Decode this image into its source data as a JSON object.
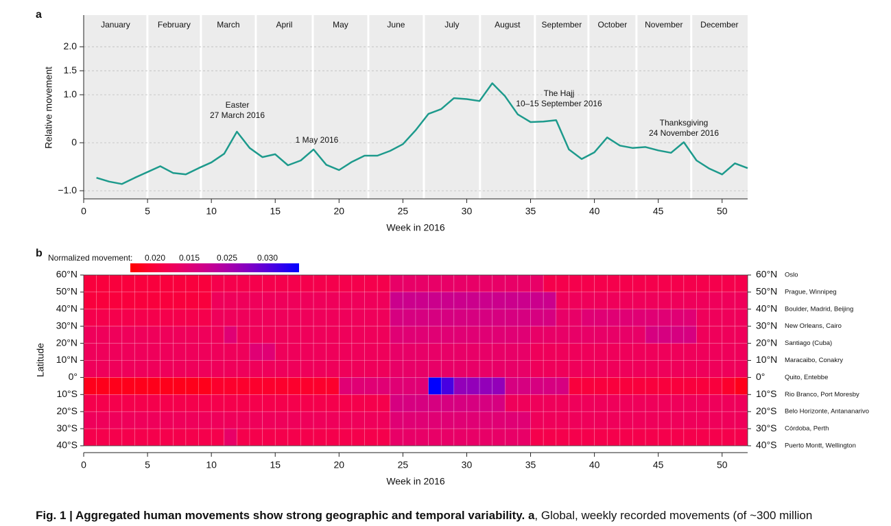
{
  "figure": {
    "panel_a_label": "a",
    "panel_b_label": "b",
    "caption": {
      "bold": "Fig. 1 | Aggregated human movements show strong geographic and temporal variability.",
      "bold_panel": "a",
      "text": ", Global, weekly recorded movements (of ~300 million"
    }
  },
  "chart_data": [
    {
      "type": "line",
      "xlabel": "Week in 2016",
      "ylabel": "Relative movement",
      "x": [
        1,
        2,
        3,
        4,
        5,
        6,
        7,
        8,
        9,
        10,
        11,
        12,
        13,
        14,
        15,
        16,
        17,
        18,
        19,
        20,
        21,
        22,
        23,
        24,
        25,
        26,
        27,
        28,
        29,
        30,
        31,
        32,
        33,
        34,
        35,
        36,
        37,
        38,
        39,
        40,
        41,
        42,
        43,
        44,
        45,
        46,
        47,
        48,
        49,
        50,
        51,
        52
      ],
      "series": [
        {
          "color": "#1d9a8c",
          "values": [
            -0.73,
            -0.81,
            -0.86,
            -0.73,
            -0.61,
            -0.49,
            -0.63,
            -0.66,
            -0.53,
            -0.41,
            -0.23,
            0.23,
            -0.11,
            -0.3,
            -0.24,
            -0.47,
            -0.37,
            -0.14,
            -0.46,
            -0.57,
            -0.4,
            -0.27,
            -0.27,
            -0.17,
            -0.03,
            0.26,
            0.6,
            0.7,
            0.93,
            0.91,
            0.87,
            1.24,
            0.97,
            0.59,
            0.43,
            0.44,
            0.47,
            -0.14,
            -0.34,
            -0.2,
            0.11,
            -0.06,
            -0.11,
            -0.09,
            -0.16,
            -0.21,
            0.01,
            -0.37,
            -0.54,
            -0.66,
            -0.43,
            -0.53
          ]
        }
      ],
      "xlim": [
        0,
        52
      ],
      "xticks": [
        0,
        5,
        10,
        15,
        20,
        25,
        30,
        35,
        40,
        45,
        50
      ],
      "ylim": [
        -1.17,
        2.66
      ],
      "yticks": [
        {
          "value": 2.0,
          "label": "2.0"
        },
        1.5,
        {
          "value": 1.0,
          "label": "1.0"
        },
        0,
        {
          "value": -1.0,
          "label": "−1.0"
        }
      ],
      "months": [
        "January",
        "February",
        "March",
        "April",
        "May",
        "June",
        "July",
        "August",
        "September",
        "October",
        "November",
        "December"
      ],
      "month_edges": [
        0,
        4.99,
        9.18,
        13.48,
        17.94,
        22.29,
        26.64,
        31.04,
        35.34,
        39.53,
        43.29,
        47.58,
        52
      ],
      "annotations": [
        {
          "lines": [
            "Easter",
            "27 March 2016"
          ]
        },
        {
          "lines": [
            "1 May 2016"
          ]
        },
        {
          "lines": [
            "The Hajj",
            "10–15 September 2016"
          ]
        },
        {
          "lines": [
            "Thanksgiving",
            "24 November 2016"
          ]
        }
      ]
    },
    {
      "type": "heatmap",
      "xlabel": "Week in 2016",
      "ylabel": "Latitude",
      "colorbar_title": "Normalized movement:",
      "colorbar_labels": [
        "0.020",
        "0.015",
        "0.025",
        "0.030"
      ],
      "clim": [
        0.015,
        0.035
      ],
      "xlim": [
        0,
        52
      ],
      "xticks": [
        0,
        5,
        10,
        15,
        20,
        25,
        30,
        35,
        40,
        45,
        50
      ],
      "x": [
        1,
        2,
        3,
        4,
        5,
        6,
        7,
        8,
        9,
        10,
        11,
        12,
        13,
        14,
        15,
        16,
        17,
        18,
        19,
        20,
        21,
        22,
        23,
        24,
        25,
        26,
        27,
        28,
        29,
        30,
        31,
        32,
        33,
        34,
        35,
        36,
        37,
        38,
        39,
        40,
        41,
        42,
        43,
        44,
        45,
        46,
        47,
        48,
        49,
        50,
        51,
        52
      ],
      "y_labels": [
        "60°N",
        "50°N",
        "40°N",
        "30°N",
        "20°N",
        "10°N",
        "0°",
        "10°S",
        "20°S",
        "30°S",
        "40°S"
      ],
      "cities": [
        "Oslo",
        "Prague, Winnipeg",
        "Boulder, Madrid, Beijing",
        "New Orleans, Cairo",
        "Santiago (Cuba)",
        "Maracaibo, Conakry",
        "Quito, Entebbe",
        "Rio Branco, Port Moresby",
        "Belo Horizonte, Antananarivo",
        "Córdoba, Perth",
        "Puerto Montt, Wellington"
      ],
      "z": [
        [
          0.018,
          0.018,
          0.018,
          0.018,
          0.018,
          0.018,
          0.018,
          0.018,
          0.018,
          0.018,
          0.019,
          0.019,
          0.019,
          0.019,
          0.019,
          0.019,
          0.019,
          0.019,
          0.019,
          0.019,
          0.019,
          0.019,
          0.019,
          0.019,
          0.021,
          0.021,
          0.021,
          0.021,
          0.021,
          0.021,
          0.021,
          0.021,
          0.021,
          0.021,
          0.021,
          0.021,
          0.019,
          0.019,
          0.019,
          0.019,
          0.019,
          0.019,
          0.019,
          0.019,
          0.019,
          0.019,
          0.019,
          0.019,
          0.019,
          0.019,
          0.019,
          0.019
        ],
        [
          0.018,
          0.018,
          0.018,
          0.018,
          0.018,
          0.018,
          0.018,
          0.018,
          0.018,
          0.018,
          0.02,
          0.02,
          0.02,
          0.02,
          0.02,
          0.02,
          0.02,
          0.02,
          0.02,
          0.02,
          0.02,
          0.02,
          0.02,
          0.02,
          0.024,
          0.024,
          0.024,
          0.024,
          0.024,
          0.024,
          0.024,
          0.024,
          0.024,
          0.024,
          0.024,
          0.024,
          0.024,
          0.02,
          0.02,
          0.02,
          0.02,
          0.02,
          0.02,
          0.02,
          0.02,
          0.02,
          0.02,
          0.02,
          0.02,
          0.02,
          0.02,
          0.02
        ],
        [
          0.019,
          0.019,
          0.019,
          0.019,
          0.019,
          0.019,
          0.019,
          0.019,
          0.019,
          0.019,
          0.02,
          0.02,
          0.02,
          0.02,
          0.02,
          0.02,
          0.02,
          0.02,
          0.02,
          0.02,
          0.02,
          0.02,
          0.02,
          0.02,
          0.023,
          0.023,
          0.023,
          0.023,
          0.023,
          0.023,
          0.023,
          0.023,
          0.023,
          0.023,
          0.023,
          0.023,
          0.023,
          0.021,
          0.021,
          0.022,
          0.022,
          0.022,
          0.022,
          0.022,
          0.022,
          0.022,
          0.022,
          0.022,
          0.02,
          0.02,
          0.02,
          0.02
        ],
        [
          0.02,
          0.02,
          0.02,
          0.02,
          0.02,
          0.02,
          0.02,
          0.02,
          0.02,
          0.02,
          0.02,
          0.022,
          0.02,
          0.02,
          0.02,
          0.02,
          0.02,
          0.02,
          0.02,
          0.02,
          0.02,
          0.02,
          0.02,
          0.02,
          0.022,
          0.022,
          0.022,
          0.022,
          0.022,
          0.022,
          0.022,
          0.022,
          0.022,
          0.022,
          0.022,
          0.021,
          0.021,
          0.021,
          0.021,
          0.021,
          0.021,
          0.021,
          0.021,
          0.021,
          0.023,
          0.023,
          0.023,
          0.023,
          0.02,
          0.02,
          0.02,
          0.02
        ],
        [
          0.02,
          0.02,
          0.02,
          0.02,
          0.02,
          0.02,
          0.02,
          0.02,
          0.02,
          0.02,
          0.02,
          0.02,
          0.02,
          0.022,
          0.022,
          0.02,
          0.02,
          0.02,
          0.02,
          0.02,
          0.02,
          0.02,
          0.02,
          0.02,
          0.021,
          0.021,
          0.021,
          0.021,
          0.021,
          0.021,
          0.021,
          0.021,
          0.021,
          0.021,
          0.021,
          0.02,
          0.02,
          0.02,
          0.02,
          0.02,
          0.02,
          0.02,
          0.02,
          0.02,
          0.02,
          0.02,
          0.02,
          0.02,
          0.02,
          0.02,
          0.02,
          0.02
        ],
        [
          0.02,
          0.02,
          0.02,
          0.02,
          0.02,
          0.02,
          0.02,
          0.02,
          0.02,
          0.02,
          0.02,
          0.02,
          0.02,
          0.02,
          0.02,
          0.02,
          0.02,
          0.02,
          0.02,
          0.02,
          0.02,
          0.02,
          0.02,
          0.02,
          0.021,
          0.021,
          0.021,
          0.021,
          0.021,
          0.021,
          0.021,
          0.021,
          0.021,
          0.021,
          0.021,
          0.02,
          0.02,
          0.02,
          0.02,
          0.02,
          0.02,
          0.02,
          0.02,
          0.02,
          0.02,
          0.02,
          0.02,
          0.02,
          0.02,
          0.02,
          0.02,
          0.02
        ],
        [
          0.016,
          0.016,
          0.016,
          0.016,
          0.016,
          0.016,
          0.016,
          0.016,
          0.016,
          0.016,
          0.017,
          0.017,
          0.017,
          0.017,
          0.017,
          0.017,
          0.017,
          0.017,
          0.017,
          0.017,
          0.022,
          0.022,
          0.022,
          0.022,
          0.022,
          0.022,
          0.022,
          0.035,
          0.032,
          0.028,
          0.028,
          0.028,
          0.028,
          0.023,
          0.023,
          0.023,
          0.023,
          0.023,
          0.018,
          0.018,
          0.018,
          0.018,
          0.018,
          0.018,
          0.018,
          0.018,
          0.018,
          0.018,
          0.018,
          0.018,
          0.017,
          0.016
        ],
        [
          0.019,
          0.019,
          0.019,
          0.019,
          0.019,
          0.019,
          0.019,
          0.019,
          0.019,
          0.019,
          0.019,
          0.019,
          0.019,
          0.019,
          0.019,
          0.019,
          0.019,
          0.019,
          0.019,
          0.019,
          0.019,
          0.019,
          0.019,
          0.019,
          0.023,
          0.023,
          0.023,
          0.023,
          0.023,
          0.023,
          0.023,
          0.023,
          0.023,
          0.02,
          0.02,
          0.02,
          0.02,
          0.02,
          0.02,
          0.02,
          0.02,
          0.02,
          0.02,
          0.02,
          0.02,
          0.02,
          0.02,
          0.02,
          0.02,
          0.02,
          0.02,
          0.02
        ],
        [
          0.02,
          0.02,
          0.02,
          0.02,
          0.02,
          0.02,
          0.02,
          0.02,
          0.02,
          0.02,
          0.02,
          0.02,
          0.02,
          0.02,
          0.02,
          0.02,
          0.02,
          0.02,
          0.02,
          0.02,
          0.02,
          0.02,
          0.02,
          0.02,
          0.022,
          0.022,
          0.022,
          0.022,
          0.022,
          0.022,
          0.022,
          0.022,
          0.022,
          0.022,
          0.022,
          0.02,
          0.02,
          0.02,
          0.02,
          0.02,
          0.02,
          0.02,
          0.02,
          0.02,
          0.02,
          0.02,
          0.02,
          0.02,
          0.02,
          0.02,
          0.02,
          0.02
        ],
        [
          0.019,
          0.019,
          0.019,
          0.019,
          0.019,
          0.019,
          0.019,
          0.019,
          0.019,
          0.019,
          0.019,
          0.021,
          0.019,
          0.019,
          0.019,
          0.019,
          0.019,
          0.019,
          0.019,
          0.019,
          0.019,
          0.019,
          0.019,
          0.019,
          0.021,
          0.021,
          0.021,
          0.021,
          0.021,
          0.021,
          0.021,
          0.021,
          0.021,
          0.021,
          0.021,
          0.019,
          0.019,
          0.019,
          0.019,
          0.019,
          0.019,
          0.019,
          0.019,
          0.019,
          0.019,
          0.019,
          0.019,
          0.019,
          0.019,
          0.019,
          0.019,
          0.019
        ]
      ]
    }
  ]
}
